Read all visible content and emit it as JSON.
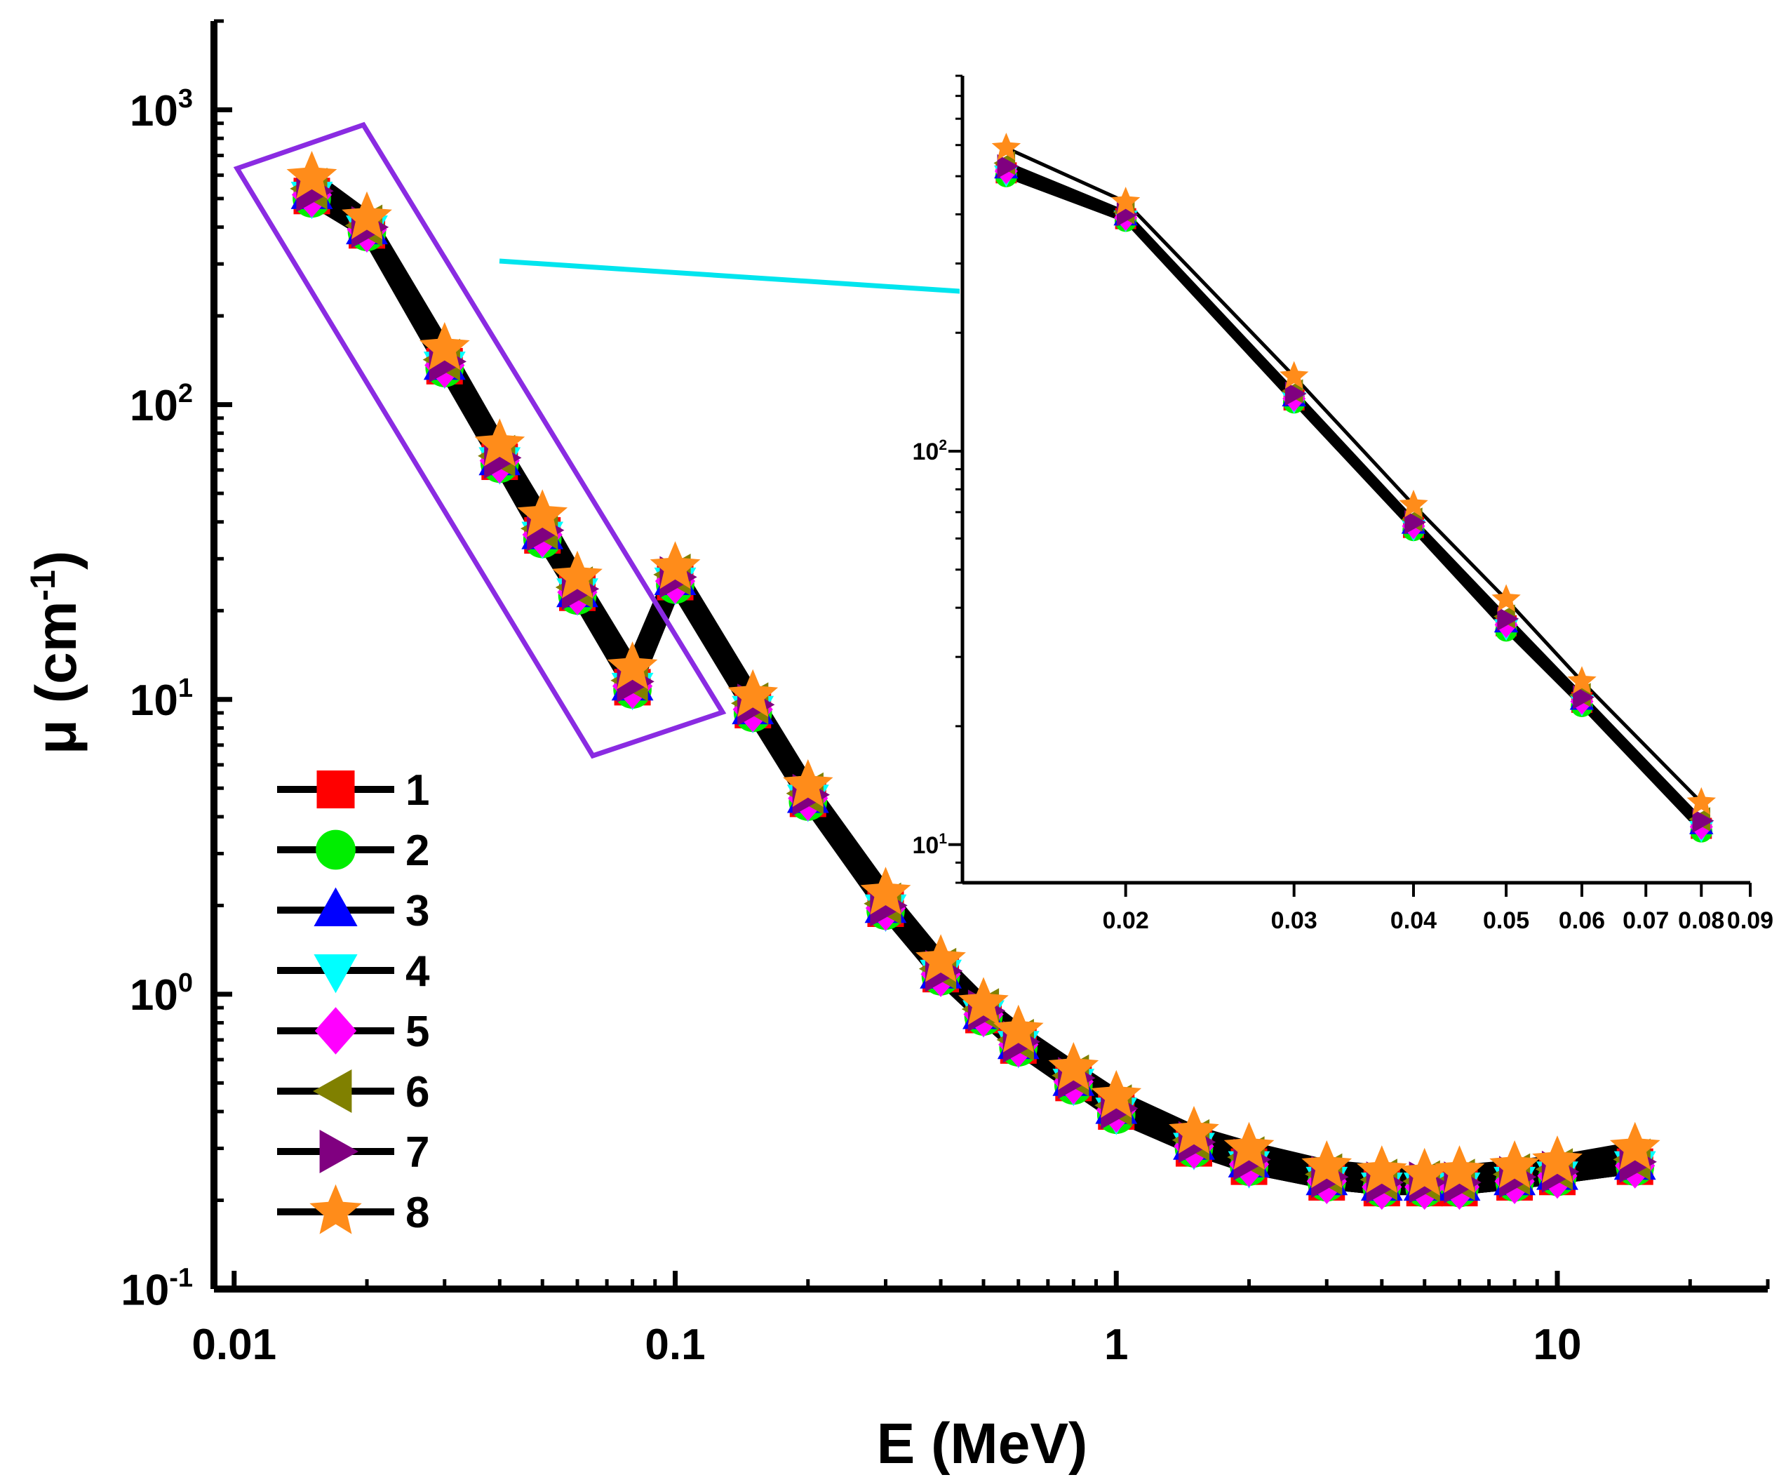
{
  "chart_data": [
    {
      "type": "line",
      "x_scale": "log",
      "y_scale": "log",
      "xlabel": "E (MeV)",
      "ylabel": "μ (cm⁻¹)",
      "xlim": [
        0.009,
        30
      ],
      "ylim": [
        0.1,
        2000
      ],
      "x_ticks": [
        0.01,
        0.1,
        1,
        10
      ],
      "x_tick_labels": [
        "0.01",
        "0.1",
        "1",
        "10"
      ],
      "y_ticks": [
        0.1,
        1,
        10,
        100,
        1000
      ],
      "y_tick_labels": [
        {
          "base": "10",
          "exp": "-1"
        },
        {
          "base": "10",
          "exp": "0"
        },
        {
          "base": "10",
          "exp": "1"
        },
        {
          "base": "10",
          "exp": "2"
        },
        {
          "base": "10",
          "exp": "3"
        }
      ],
      "legend_position": "lower-left",
      "x": [
        0.015,
        0.02,
        0.03,
        0.04,
        0.05,
        0.06,
        0.08,
        0.1,
        0.15,
        0.2,
        0.3,
        0.4,
        0.5,
        0.6,
        0.8,
        1,
        1.5,
        2,
        3,
        4,
        5,
        6,
        8,
        10,
        15
      ],
      "series": [
        {
          "name": "1",
          "marker": "square",
          "color": "#ff0000",
          "values": [
            510,
            390,
            135,
            64,
            36,
            23,
            11,
            25,
            9.2,
            4.6,
            1.95,
            1.17,
            0.85,
            0.67,
            0.5,
            0.4,
            0.3,
            0.26,
            0.23,
            0.22,
            0.22,
            0.22,
            0.23,
            0.24,
            0.26
          ]
        },
        {
          "name": "2",
          "marker": "circle",
          "color": "#00ee00",
          "values": [
            500,
            385,
            133,
            63,
            35,
            22.5,
            10.8,
            24.5,
            9.0,
            4.5,
            1.92,
            1.15,
            0.84,
            0.66,
            0.49,
            0.39,
            0.3,
            0.26,
            0.23,
            0.22,
            0.22,
            0.22,
            0.23,
            0.24,
            0.26
          ]
        },
        {
          "name": "3",
          "marker": "triangle-up",
          "color": "#0000ff",
          "values": [
            520,
            395,
            137,
            65,
            36.5,
            23.2,
            11.2,
            25.5,
            9.3,
            4.65,
            1.97,
            1.18,
            0.86,
            0.68,
            0.51,
            0.41,
            0.31,
            0.27,
            0.235,
            0.225,
            0.225,
            0.225,
            0.235,
            0.245,
            0.265
          ]
        },
        {
          "name": "4",
          "marker": "triangle-down",
          "color": "#00ffff",
          "values": [
            505,
            388,
            134,
            63.5,
            35.5,
            22.8,
            10.9,
            24.8,
            9.1,
            4.55,
            1.93,
            1.16,
            0.845,
            0.665,
            0.495,
            0.395,
            0.3,
            0.26,
            0.23,
            0.22,
            0.22,
            0.22,
            0.23,
            0.24,
            0.26
          ]
        },
        {
          "name": "5",
          "marker": "diamond",
          "color": "#ff00ff",
          "values": [
            515,
            392,
            136,
            64.5,
            36.2,
            23.1,
            11.1,
            25.2,
            9.25,
            4.62,
            1.96,
            1.17,
            0.855,
            0.675,
            0.505,
            0.405,
            0.305,
            0.265,
            0.232,
            0.222,
            0.222,
            0.222,
            0.232,
            0.242,
            0.262
          ]
        },
        {
          "name": "6",
          "marker": "triangle-left",
          "color": "#808000",
          "values": [
            540,
            405,
            142,
            67,
            38,
            24,
            11.6,
            26.5,
            9.7,
            4.8,
            2.03,
            1.22,
            0.89,
            0.7,
            0.53,
            0.42,
            0.32,
            0.28,
            0.245,
            0.235,
            0.232,
            0.235,
            0.245,
            0.255,
            0.275
          ]
        },
        {
          "name": "7",
          "marker": "triangle-right",
          "color": "#800080",
          "values": [
            530,
            400,
            140,
            66,
            37.5,
            23.7,
            11.5,
            26,
            9.6,
            4.75,
            2.0,
            1.2,
            0.88,
            0.69,
            0.52,
            0.41,
            0.315,
            0.275,
            0.24,
            0.23,
            0.23,
            0.23,
            0.24,
            0.25,
            0.27
          ]
        },
        {
          "name": "8",
          "marker": "star",
          "color": "#ff8c1a",
          "values": [
            590,
            430,
            155,
            73,
            42,
            26,
            12.8,
            28,
            10.3,
            5.1,
            2.2,
            1.3,
            0.93,
            0.75,
            0.56,
            0.45,
            0.34,
            0.3,
            0.26,
            0.25,
            0.245,
            0.25,
            0.26,
            0.27,
            0.3
          ]
        }
      ]
    },
    {
      "type": "line",
      "x_scale": "log",
      "y_scale": "log",
      "xlabel": "",
      "ylabel": "",
      "xlim": [
        0.0135,
        0.09
      ],
      "ylim": [
        8,
        900
      ],
      "x_ticks": [
        0.02,
        0.03,
        0.04,
        0.05,
        0.06,
        0.07,
        0.08,
        0.09
      ],
      "x_tick_labels": [
        "0.02",
        "0.03",
        "0.04",
        "0.05",
        "0.06",
        "0.07",
        "0.08",
        "0.09"
      ],
      "y_ticks": [
        10,
        100
      ],
      "y_tick_labels": [
        {
          "base": "10",
          "exp": "1"
        },
        {
          "base": "10",
          "exp": "2"
        }
      ],
      "x": [
        0.015,
        0.02,
        0.03,
        0.04,
        0.05,
        0.06,
        0.08
      ],
      "series": [
        {
          "name": "1",
          "marker": "square",
          "color": "#ff0000",
          "values": [
            510,
            390,
            135,
            64,
            36,
            23,
            11
          ]
        },
        {
          "name": "2",
          "marker": "circle",
          "color": "#00ee00",
          "values": [
            500,
            385,
            133,
            63,
            35,
            22.5,
            10.8
          ]
        },
        {
          "name": "3",
          "marker": "triangle-up",
          "color": "#0000ff",
          "values": [
            520,
            395,
            137,
            65,
            36.5,
            23.2,
            11.2
          ]
        },
        {
          "name": "4",
          "marker": "triangle-down",
          "color": "#00ffff",
          "values": [
            505,
            388,
            134,
            63.5,
            35.5,
            22.8,
            10.9
          ]
        },
        {
          "name": "5",
          "marker": "diamond",
          "color": "#ff00ff",
          "values": [
            515,
            392,
            136,
            64.5,
            36.2,
            23.1,
            11.1
          ]
        },
        {
          "name": "6",
          "marker": "triangle-left",
          "color": "#808000",
          "values": [
            540,
            405,
            142,
            67,
            38,
            24,
            11.6
          ]
        },
        {
          "name": "7",
          "marker": "triangle-right",
          "color": "#800080",
          "values": [
            530,
            400,
            140,
            66,
            37.5,
            23.7,
            11.5
          ]
        },
        {
          "name": "8",
          "marker": "star",
          "color": "#ff8c1a",
          "values": [
            590,
            430,
            155,
            73,
            42,
            26,
            12.8
          ]
        }
      ]
    }
  ],
  "annotations": {
    "highlight_box_color": "#8a2be2",
    "zoom_arrow_color": "#00e5ee"
  }
}
